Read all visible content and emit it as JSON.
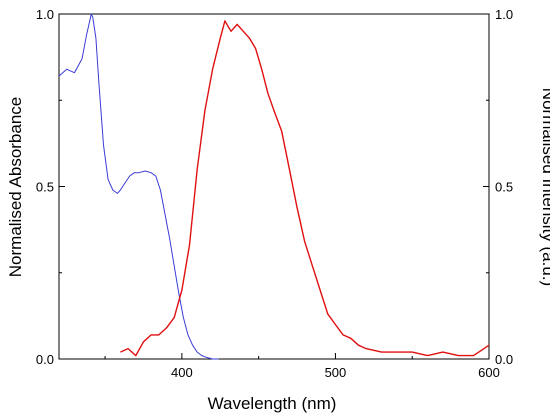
{
  "chart_data": {
    "type": "line",
    "title": "",
    "xlabel": "Wavelength (nm)",
    "ylabel_left": "Normalised Absorbance",
    "ylabel_right": "Normalised Intensity (a.u.)",
    "xlim": [
      320,
      600
    ],
    "ylim_left": [
      0.0,
      1.0
    ],
    "ylim_right": [
      0.0,
      1.0
    ],
    "x_ticks": [
      400,
      500,
      600
    ],
    "y_ticks_left": [
      "0.0",
      "0.5",
      "1.0"
    ],
    "y_ticks_right": [
      "0.0",
      "0.5",
      "1.0"
    ],
    "grid": false,
    "legend": "none",
    "series": [
      {
        "color": "#3a3ad8",
        "axis": "left",
        "x": [
          320,
          325,
          330,
          335,
          338,
          341,
          342,
          344,
          346,
          349,
          352,
          355,
          358,
          360,
          363,
          366,
          369,
          372,
          376,
          380,
          383,
          386,
          389,
          392,
          395,
          398,
          401,
          404,
          407,
          410,
          413,
          416,
          420,
          424
        ],
        "y": [
          0.82,
          0.84,
          0.83,
          0.87,
          0.94,
          1.0,
          0.99,
          0.93,
          0.8,
          0.62,
          0.52,
          0.49,
          0.48,
          0.49,
          0.51,
          0.53,
          0.54,
          0.54,
          0.545,
          0.54,
          0.53,
          0.49,
          0.42,
          0.35,
          0.27,
          0.19,
          0.12,
          0.07,
          0.04,
          0.02,
          0.01,
          0.005,
          0.0,
          0.0
        ]
      },
      {
        "color": "#e01010",
        "axis": "right",
        "x": [
          360,
          365,
          370,
          375,
          380,
          385,
          390,
          395,
          400,
          405,
          410,
          415,
          420,
          425,
          428,
          432,
          436,
          440,
          444,
          448,
          452,
          456,
          460,
          465,
          470,
          475,
          480,
          485,
          490,
          495,
          500,
          505,
          510,
          515,
          520,
          530,
          540,
          550,
          560,
          570,
          580,
          590,
          600
        ],
        "y": [
          0.02,
          0.03,
          0.01,
          0.05,
          0.07,
          0.07,
          0.09,
          0.12,
          0.2,
          0.33,
          0.55,
          0.72,
          0.84,
          0.93,
          0.98,
          0.95,
          0.97,
          0.95,
          0.93,
          0.9,
          0.84,
          0.77,
          0.72,
          0.66,
          0.55,
          0.44,
          0.34,
          0.27,
          0.2,
          0.13,
          0.1,
          0.07,
          0.06,
          0.04,
          0.03,
          0.02,
          0.02,
          0.02,
          0.01,
          0.02,
          0.01,
          0.01,
          0.04
        ]
      }
    ]
  }
}
